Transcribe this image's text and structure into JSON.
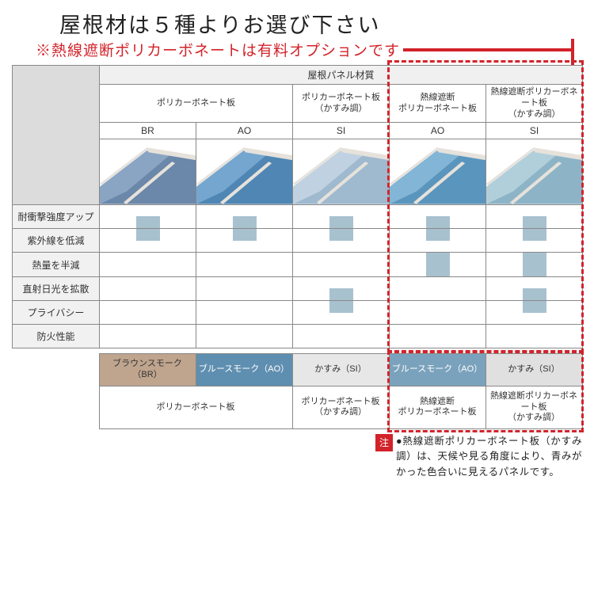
{
  "title": {
    "main": "屋根材は５種よりお選び下さい",
    "sub": "※熱線遮断ポリカーボネートは有料オプションです"
  },
  "table": {
    "top_header": "屋根パネル材質",
    "materials": [
      {
        "label": "ポリカーボネート板",
        "span": 2
      },
      {
        "label": "ポリカーボネート板\n（かすみ調）",
        "span": 1
      },
      {
        "label": "熱線遮断\nポリカーボネート板",
        "span": 1
      },
      {
        "label": "熱線遮断ポリカーボネート板\n（かすみ調）",
        "span": 1
      }
    ],
    "codes": [
      "BR",
      "AO",
      "SI",
      "AO",
      "SI"
    ],
    "panel_colors": {
      "BR": {
        "fill": "#6b87a9",
        "tint": "#8aa5c4"
      },
      "AO": {
        "fill": "#4f86b4",
        "tint": "#74a6cf"
      },
      "SI": {
        "fill": "#9fb9cf",
        "tint": "#c0d2e1"
      },
      "AO2": {
        "fill": "#5a95bd",
        "tint": "#83b5d6"
      },
      "SI2": {
        "fill": "#8db4c6",
        "tint": "#b1cfdb"
      }
    },
    "beam_color": "#e6e2db",
    "feature_rows": [
      "耐衝撃強度アップ",
      "紫外線を低減",
      "熱量を半減",
      "直射日光を拡散",
      "プライバシー",
      "防火性能"
    ],
    "bar_color": "#a8c1cf",
    "grid": [
      [
        "upper",
        "upper",
        "upper",
        "upper",
        "upper"
      ],
      [
        "lower",
        "lower",
        "lower",
        "lower",
        "lower"
      ],
      [
        "",
        "",
        "",
        "full",
        "full"
      ],
      [
        "",
        "",
        "upper",
        "",
        "upper"
      ],
      [
        "",
        "",
        "lower",
        "",
        "lower"
      ],
      [
        "",
        "",
        "",
        "",
        ""
      ]
    ],
    "legend": {
      "swatches": [
        {
          "label": "ブラウンスモーク（BR）",
          "cls": "sw-br"
        },
        {
          "label": "ブルースモーク（AO）",
          "cls": "sw-ao"
        },
        {
          "label": "かすみ（SI）",
          "cls": "sw-si"
        },
        {
          "label": "ブルースモーク（AO）",
          "cls": "sw-ao2"
        },
        {
          "label": "かすみ（SI）",
          "cls": "sw-si2"
        }
      ],
      "groups": [
        {
          "label": "ポリカーボネート板",
          "span": 2
        },
        {
          "label": "ポリカーボネート板\n（かすみ調）",
          "span": 1
        },
        {
          "label": "熱線遮断\nポリカーボネート板",
          "span": 1
        },
        {
          "label": "熱線遮断ポリカーボネート板\n（かすみ調）",
          "span": 1
        }
      ]
    }
  },
  "note": {
    "badge": "注",
    "text": "●熱線遮断ポリカーボネート板（かすみ調）は、天候や見る角度により、青みがかった色合いに見えるパネルです。"
  },
  "highlight_color": "#d2232a"
}
